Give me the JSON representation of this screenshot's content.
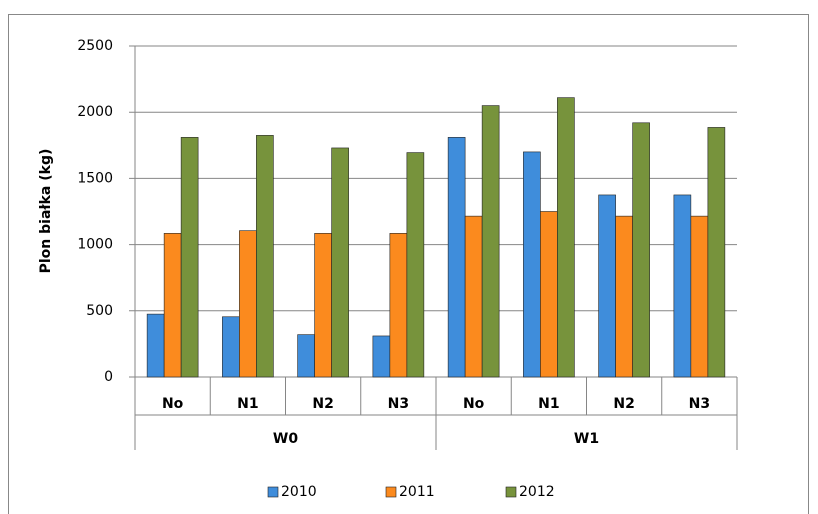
{
  "chart_data": {
    "type": "bar",
    "y_label": "Plon białka (kg)",
    "categories": [
      "No",
      "N1",
      "N2",
      "N3",
      "No",
      "N1",
      "N2",
      "N3"
    ],
    "groups": [
      "W0",
      "W1"
    ],
    "series": [
      {
        "name": "2010",
        "color": "#3f8ddb",
        "values": [
          475,
          455,
          320,
          310,
          1810,
          1700,
          1375,
          1375
        ]
      },
      {
        "name": "2011",
        "color": "#fb8a1e",
        "values": [
          1085,
          1105,
          1085,
          1085,
          1215,
          1250,
          1215,
          1215
        ]
      },
      {
        "name": "2012",
        "color": "#77933c",
        "values": [
          1810,
          1825,
          1730,
          1695,
          2050,
          2110,
          1920,
          1885
        ]
      }
    ],
    "ylim": [
      0,
      2500
    ],
    "yticks": [
      0,
      500,
      1000,
      1500,
      2000,
      2500
    ],
    "grid": true,
    "legend": "bottom"
  }
}
